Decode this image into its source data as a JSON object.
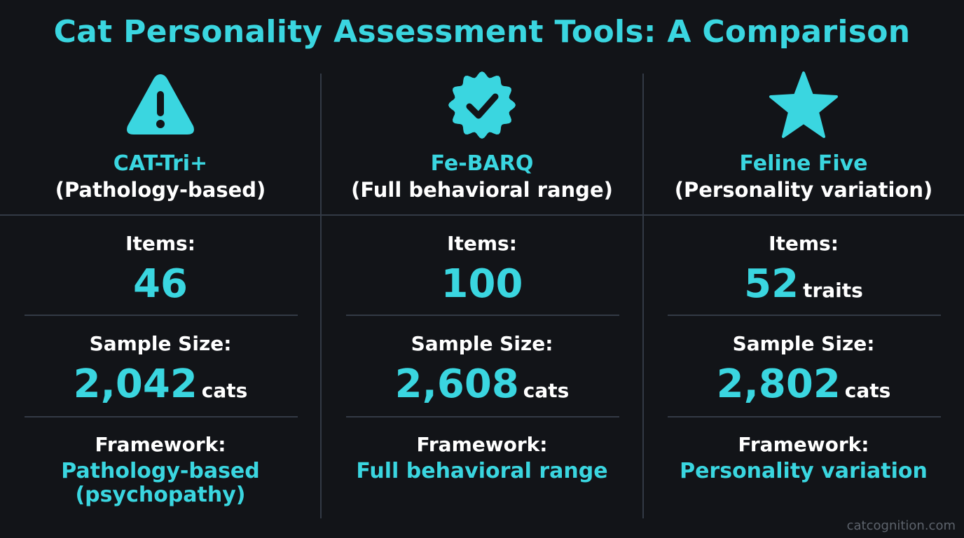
{
  "title": "Cat Personality Assessment Tools: A Comparison",
  "accent_color": "#3ad6e0",
  "background_color": "#121418",
  "columns": [
    {
      "icon": "warning-triangle-icon",
      "name": "CAT-Tri+",
      "subtitle": "(Pathology-based)",
      "items_label": "Items:",
      "items_value": "46",
      "items_unit": "",
      "sample_label": "Sample Size:",
      "sample_value": "2,042",
      "sample_unit": "cats",
      "framework_label": "Framework:",
      "framework_lines": [
        "Pathology-based",
        "(psychopathy)"
      ]
    },
    {
      "icon": "verified-badge-icon",
      "name": "Fe-BARQ",
      "subtitle": "(Full behavioral range)",
      "items_label": "Items:",
      "items_value": "100",
      "items_unit": "",
      "sample_label": "Sample Size:",
      "sample_value": "2,608",
      "sample_unit": "cats",
      "framework_label": "Framework:",
      "framework_lines": [
        "Full behavioral range"
      ]
    },
    {
      "icon": "star-icon",
      "name": "Feline Five",
      "subtitle": "(Personality variation)",
      "items_label": "Items:",
      "items_value": "52",
      "items_unit": "traits",
      "sample_label": "Sample Size:",
      "sample_value": "2,802",
      "sample_unit": "cats",
      "framework_label": "Framework:",
      "framework_lines": [
        "Personality variation"
      ]
    }
  ],
  "footer": "catcognition.com"
}
